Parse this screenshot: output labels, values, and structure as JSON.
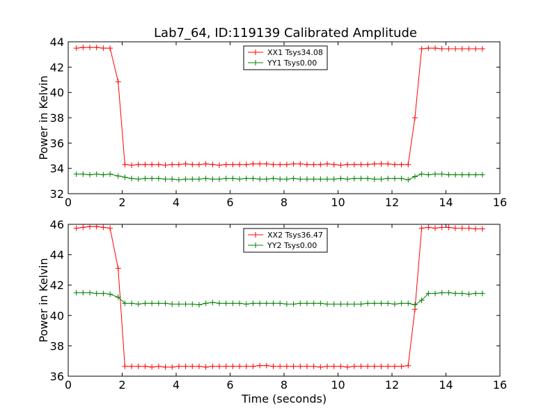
{
  "title": "Lab7_64, ID:119139 Calibrated Amplitude",
  "chart_data": [
    {
      "type": "line",
      "ylabel": "Power in Kelvin",
      "xlabel": "",
      "xlim": [
        0,
        16
      ],
      "ylim": [
        32,
        44
      ],
      "xticks": [
        "0",
        "2",
        "4",
        "6",
        "8",
        "10",
        "12",
        "14",
        "16"
      ],
      "yticks": [
        "32",
        "34",
        "36",
        "38",
        "40",
        "42",
        "44"
      ],
      "legend_position": "top-center",
      "x": [
        0.3,
        0.55,
        0.8,
        1.05,
        1.3,
        1.55,
        1.85,
        2.1,
        2.35,
        2.6,
        2.85,
        3.1,
        3.35,
        3.6,
        3.85,
        4.1,
        4.35,
        4.6,
        4.85,
        5.1,
        5.35,
        5.6,
        5.85,
        6.1,
        6.35,
        6.6,
        6.85,
        7.1,
        7.35,
        7.6,
        7.85,
        8.1,
        8.35,
        8.6,
        8.85,
        9.1,
        9.35,
        9.6,
        9.85,
        10.1,
        10.35,
        10.6,
        10.85,
        11.1,
        11.35,
        11.6,
        11.85,
        12.1,
        12.35,
        12.6,
        12.85,
        13.1,
        13.35,
        13.6,
        13.85,
        14.1,
        14.35,
        14.6,
        14.85,
        15.1,
        15.35
      ],
      "series": [
        {
          "name": "XX1 Tsys34.08",
          "color": "#ff0000",
          "values": [
            43.5,
            43.55,
            43.55,
            43.55,
            43.5,
            43.5,
            40.85,
            34.3,
            34.25,
            34.3,
            34.3,
            34.3,
            34.3,
            34.25,
            34.3,
            34.3,
            34.35,
            34.3,
            34.3,
            34.35,
            34.3,
            34.25,
            34.3,
            34.3,
            34.3,
            34.3,
            34.35,
            34.35,
            34.35,
            34.3,
            34.3,
            34.3,
            34.35,
            34.35,
            34.3,
            34.3,
            34.3,
            34.35,
            34.3,
            34.25,
            34.3,
            34.3,
            34.3,
            34.3,
            34.35,
            34.35,
            34.35,
            34.3,
            34.3,
            34.3,
            38.0,
            43.45,
            43.5,
            43.5,
            43.45,
            43.45,
            43.45,
            43.45,
            43.45,
            43.45,
            43.45
          ]
        },
        {
          "name": "YY1 Tsys0.00",
          "color": "#008000",
          "values": [
            33.55,
            33.55,
            33.5,
            33.55,
            33.5,
            33.55,
            33.4,
            33.3,
            33.2,
            33.15,
            33.2,
            33.2,
            33.2,
            33.15,
            33.15,
            33.1,
            33.15,
            33.15,
            33.15,
            33.2,
            33.15,
            33.15,
            33.2,
            33.2,
            33.15,
            33.2,
            33.2,
            33.15,
            33.15,
            33.2,
            33.15,
            33.15,
            33.2,
            33.15,
            33.15,
            33.15,
            33.15,
            33.15,
            33.15,
            33.2,
            33.15,
            33.2,
            33.2,
            33.2,
            33.15,
            33.15,
            33.2,
            33.2,
            33.2,
            33.1,
            33.35,
            33.55,
            33.5,
            33.55,
            33.55,
            33.5,
            33.5,
            33.5,
            33.5,
            33.5,
            33.5
          ]
        }
      ]
    },
    {
      "type": "line",
      "ylabel": "Power in Kelvin",
      "xlabel": "Time (seconds)",
      "xlim": [
        0,
        16
      ],
      "ylim": [
        36,
        46
      ],
      "xticks": [
        "0",
        "2",
        "4",
        "6",
        "8",
        "10",
        "12",
        "14",
        "16"
      ],
      "yticks": [
        "36",
        "38",
        "40",
        "42",
        "44",
        "46"
      ],
      "legend_position": "top-center",
      "x": [
        0.3,
        0.55,
        0.8,
        1.05,
        1.3,
        1.55,
        1.85,
        2.1,
        2.35,
        2.6,
        2.85,
        3.1,
        3.35,
        3.6,
        3.85,
        4.1,
        4.35,
        4.6,
        4.85,
        5.1,
        5.35,
        5.6,
        5.85,
        6.1,
        6.35,
        6.6,
        6.85,
        7.1,
        7.35,
        7.6,
        7.85,
        8.1,
        8.35,
        8.6,
        8.85,
        9.1,
        9.35,
        9.6,
        9.85,
        10.1,
        10.35,
        10.6,
        10.85,
        11.1,
        11.35,
        11.6,
        11.85,
        12.1,
        12.35,
        12.6,
        12.85,
        13.1,
        13.35,
        13.6,
        13.85,
        14.1,
        14.35,
        14.6,
        14.85,
        15.1,
        15.35
      ],
      "series": [
        {
          "name": "XX2 Tsys36.47",
          "color": "#ff0000",
          "values": [
            45.75,
            45.8,
            45.85,
            45.85,
            45.8,
            45.75,
            43.1,
            36.65,
            36.65,
            36.65,
            36.65,
            36.6,
            36.65,
            36.6,
            36.6,
            36.65,
            36.65,
            36.65,
            36.65,
            36.6,
            36.65,
            36.65,
            36.65,
            36.65,
            36.65,
            36.65,
            36.65,
            36.7,
            36.7,
            36.65,
            36.65,
            36.65,
            36.65,
            36.65,
            36.65,
            36.65,
            36.6,
            36.65,
            36.65,
            36.65,
            36.6,
            36.65,
            36.65,
            36.65,
            36.65,
            36.65,
            36.65,
            36.65,
            36.65,
            36.7,
            40.4,
            45.75,
            45.8,
            45.75,
            45.8,
            45.8,
            45.75,
            45.75,
            45.75,
            45.7,
            45.7
          ]
        },
        {
          "name": "YY2 Tsys0.00",
          "color": "#008000",
          "values": [
            41.5,
            41.5,
            41.5,
            41.45,
            41.45,
            41.4,
            41.2,
            40.8,
            40.8,
            40.75,
            40.8,
            40.8,
            40.8,
            40.8,
            40.75,
            40.75,
            40.75,
            40.75,
            40.7,
            40.8,
            40.85,
            40.8,
            40.8,
            40.8,
            40.8,
            40.75,
            40.8,
            40.8,
            40.8,
            40.8,
            40.8,
            40.75,
            40.75,
            40.8,
            40.8,
            40.8,
            40.8,
            40.75,
            40.75,
            40.75,
            40.75,
            40.75,
            40.75,
            40.8,
            40.8,
            40.8,
            40.8,
            40.75,
            40.8,
            40.8,
            40.7,
            41.0,
            41.45,
            41.45,
            41.5,
            41.5,
            41.45,
            41.45,
            41.4,
            41.45,
            41.45
          ]
        }
      ]
    }
  ]
}
